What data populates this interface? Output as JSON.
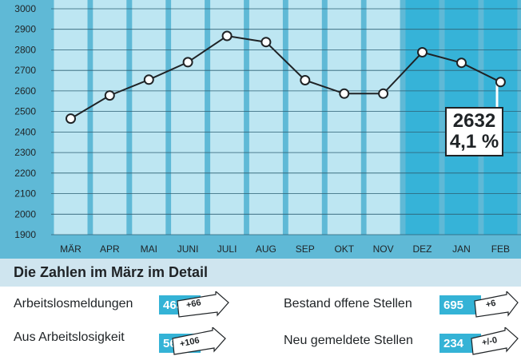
{
  "chart_data": {
    "type": "line",
    "categories": [
      "MÄR",
      "APR",
      "MAI",
      "JUNI",
      "JULI",
      "AUG",
      "SEP",
      "OKT",
      "NOV",
      "DEZ",
      "JAN",
      "FEB"
    ],
    "values": [
      2465,
      2578,
      2655,
      2740,
      2868,
      2838,
      2652,
      2587,
      2587,
      2788,
      2737,
      2643
    ],
    "highlighted_categories": [
      "DEZ",
      "JAN",
      "FEB"
    ],
    "y_ticks": [
      1900,
      2000,
      2100,
      2200,
      2300,
      2400,
      2500,
      2600,
      2700,
      2800,
      2900,
      3000
    ],
    "ylim": [
      1900,
      3000
    ],
    "grid": true,
    "callout": {
      "value": "2632",
      "rate": "4,1 %"
    },
    "colors": {
      "column": "#bde6f2",
      "column_highlight": "#36b3d8",
      "background": "#5fb9d6",
      "line": "#1f2326"
    }
  },
  "detail": {
    "title": "Die Zahlen im März im Detail",
    "stats": [
      {
        "label": "Arbeitslosmeldungen",
        "value": "463",
        "change": "+66"
      },
      {
        "label": "Bestand offene Stellen",
        "value": "695",
        "change": "+6"
      },
      {
        "label": "Aus Arbeitslosigkeit",
        "value": "563",
        "change": "+106"
      },
      {
        "label": "Neu gemeldete Stellen",
        "value": "234",
        "change": "+/-0"
      }
    ]
  }
}
